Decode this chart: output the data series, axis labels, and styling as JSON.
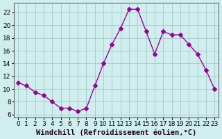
{
  "x": [
    0,
    1,
    2,
    3,
    4,
    5,
    6,
    7,
    8,
    9,
    10,
    11,
    12,
    13,
    14,
    15,
    16,
    17,
    18,
    19,
    20,
    21,
    22,
    23
  ],
  "y": [
    11,
    10.5,
    9.5,
    9,
    8,
    7,
    7,
    6.5,
    7,
    10.5,
    14,
    17,
    19.5,
    22.5,
    22.5,
    19,
    15.5,
    19,
    18.5,
    18.5,
    17,
    15.5,
    13,
    10
  ],
  "line_color": "#990099",
  "marker": "D",
  "marker_size": 3,
  "bg_color": "#d0eeee",
  "grid_color": "#aacccc",
  "xlabel": "Windchill (Refroidissement éolien,°C)",
  "xlabel_fontsize": 7.5,
  "yticks": [
    6,
    8,
    10,
    12,
    14,
    16,
    18,
    20,
    22
  ],
  "xticks": [
    0,
    1,
    2,
    3,
    4,
    5,
    6,
    7,
    8,
    9,
    10,
    11,
    12,
    13,
    14,
    15,
    16,
    17,
    18,
    19,
    20,
    21,
    22,
    23
  ],
  "ylim": [
    5.5,
    23.5
  ],
  "xlim": [
    -0.5,
    23.5
  ],
  "tick_fontsize": 6.5,
  "spine_color": "#666666"
}
